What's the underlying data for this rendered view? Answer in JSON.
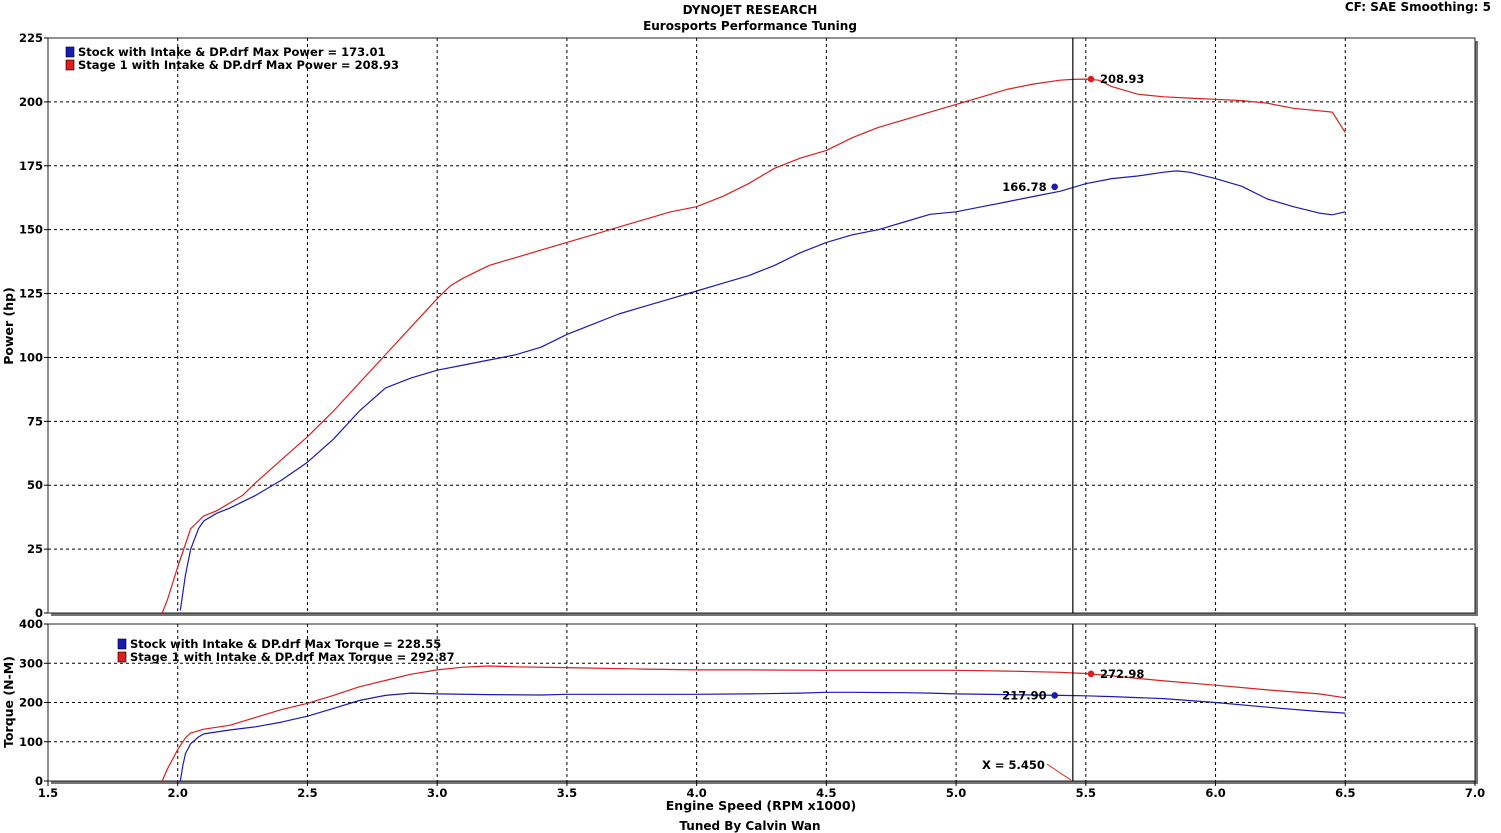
{
  "header": {
    "title": "DYNOJET RESEARCH",
    "subtitle": "Eurosports Performance Tuning",
    "settings": "CF: SAE  Smoothing: 5",
    "footer": "Tuned By Calvin Wan"
  },
  "colors": {
    "stock": "#1a1ab4",
    "stage1": "#dc1e1e",
    "grid": "#000000"
  },
  "chart_data": [
    {
      "type": "line",
      "panel": "power",
      "ylabel": "Power (hp)",
      "xlabel": "",
      "xlim": [
        1.5,
        7.0
      ],
      "ylim": [
        0,
        225
      ],
      "x_ticks": [
        1.5,
        2.0,
        2.5,
        3.0,
        3.5,
        4.0,
        4.5,
        5.0,
        5.5,
        6.0,
        6.5,
        7.0
      ],
      "y_ticks": [
        0,
        25,
        50,
        75,
        100,
        125,
        150,
        175,
        200,
        225
      ],
      "grid": true,
      "legend": [
        "Stock with Intake & DP.drf Max Power = 173.01",
        "Stage 1 with Intake & DP.drf Max Power = 208.93"
      ],
      "series": [
        {
          "id": "stock",
          "color": "#1a1ab4",
          "x": [
            2.01,
            2.02,
            2.03,
            2.05,
            2.08,
            2.1,
            2.15,
            2.2,
            2.3,
            2.4,
            2.5,
            2.6,
            2.7,
            2.8,
            2.9,
            3.0,
            3.1,
            3.2,
            3.3,
            3.4,
            3.5,
            3.6,
            3.7,
            3.8,
            3.9,
            4.0,
            4.1,
            4.2,
            4.3,
            4.4,
            4.5,
            4.6,
            4.7,
            4.8,
            4.9,
            5.0,
            5.1,
            5.2,
            5.3,
            5.4,
            5.5,
            5.6,
            5.7,
            5.8,
            5.85,
            5.9,
            6.0,
            6.1,
            6.2,
            6.3,
            6.4,
            6.45,
            6.5
          ],
          "y": [
            1,
            8,
            15,
            25,
            33,
            36,
            39,
            41,
            46,
            52,
            59,
            68,
            79,
            88,
            92,
            95,
            97,
            99,
            101,
            104,
            109,
            113,
            117,
            120,
            123,
            126,
            129,
            132,
            136,
            141,
            145,
            148,
            150,
            153,
            156,
            157,
            159,
            161,
            163,
            165,
            168,
            170,
            171,
            172.5,
            173.01,
            172.5,
            170,
            167,
            162,
            159,
            156.5,
            155.8,
            157
          ]
        },
        {
          "id": "stage1",
          "color": "#dc1e1e",
          "x": [
            1.94,
            1.96,
            2.0,
            2.03,
            2.05,
            2.08,
            2.1,
            2.15,
            2.2,
            2.25,
            2.3,
            2.4,
            2.5,
            2.6,
            2.7,
            2.8,
            2.9,
            3.0,
            3.05,
            3.1,
            3.2,
            3.3,
            3.4,
            3.5,
            3.6,
            3.7,
            3.8,
            3.9,
            4.0,
            4.1,
            4.2,
            4.3,
            4.4,
            4.5,
            4.6,
            4.7,
            4.8,
            4.9,
            5.0,
            5.1,
            5.2,
            5.3,
            5.4,
            5.45,
            5.5,
            5.55,
            5.6,
            5.7,
            5.8,
            5.9,
            6.0,
            6.1,
            6.2,
            6.3,
            6.4,
            6.45,
            6.5
          ],
          "y": [
            0,
            5,
            18,
            27,
            33,
            36,
            38,
            40,
            43,
            46,
            51,
            60,
            69,
            79,
            90,
            101,
            112,
            123,
            128,
            131,
            136,
            139,
            142,
            145,
            148,
            151,
            154,
            157,
            159,
            163,
            168,
            174,
            178,
            181,
            186,
            190,
            193,
            196,
            199,
            202,
            205,
            207,
            208.5,
            208.8,
            208.93,
            208.5,
            206,
            203,
            202,
            201.5,
            201,
            200.5,
            199.5,
            197.5,
            196.5,
            196,
            188
          ]
        }
      ],
      "annotations": [
        {
          "series": "stock",
          "x": 5.38,
          "y": 166.78,
          "label": "166.78"
        },
        {
          "series": "stage1",
          "x": 5.52,
          "y": 208.93,
          "label": "208.93"
        }
      ]
    },
    {
      "type": "line",
      "panel": "torque",
      "ylabel": "Torque (N-M)",
      "xlabel": "Engine Speed (RPM x1000)",
      "xlim": [
        1.5,
        7.0
      ],
      "ylim": [
        0,
        400
      ],
      "x_ticks": [
        1.5,
        2.0,
        2.5,
        3.0,
        3.5,
        4.0,
        4.5,
        5.0,
        5.5,
        6.0,
        6.5,
        7.0
      ],
      "y_ticks": [
        0,
        100,
        200,
        300,
        400
      ],
      "grid": true,
      "legend": [
        "Stock with Intake & DP.drf Max Torque = 228.55",
        "Stage 1 with Intake & DP.drf Max Torque = 292.87"
      ],
      "series": [
        {
          "id": "stock",
          "color": "#1a1ab4",
          "x": [
            2.01,
            2.02,
            2.03,
            2.05,
            2.08,
            2.1,
            2.2,
            2.3,
            2.4,
            2.5,
            2.6,
            2.7,
            2.8,
            2.9,
            3.0,
            3.2,
            3.4,
            3.5,
            3.8,
            4.0,
            4.2,
            4.4,
            4.5,
            4.6,
            4.8,
            4.9,
            5.0,
            5.2,
            5.4,
            5.5,
            5.6,
            5.8,
            6.0,
            6.2,
            6.4,
            6.5
          ],
          "y": [
            0,
            40,
            70,
            95,
            112,
            120,
            130,
            138,
            150,
            165,
            185,
            205,
            218,
            224,
            222,
            220,
            219,
            221,
            221,
            221,
            222,
            224,
            226,
            226,
            225,
            224,
            222,
            220,
            218,
            217,
            215,
            210,
            200,
            188,
            177,
            173
          ]
        },
        {
          "id": "stage1",
          "color": "#dc1e1e",
          "x": [
            1.94,
            1.96,
            2.0,
            2.03,
            2.05,
            2.1,
            2.2,
            2.3,
            2.4,
            2.5,
            2.6,
            2.7,
            2.8,
            2.9,
            3.0,
            3.1,
            3.2,
            3.3,
            3.5,
            3.8,
            4.0,
            4.2,
            4.5,
            4.8,
            5.0,
            5.2,
            5.4,
            5.5,
            5.6,
            5.8,
            6.0,
            6.2,
            6.4,
            6.5
          ],
          "y": [
            0,
            30,
            80,
            110,
            122,
            132,
            142,
            162,
            182,
            198,
            218,
            240,
            256,
            272,
            283,
            290,
            292.87,
            291,
            289,
            285,
            283,
            283,
            282,
            282,
            282,
            280,
            277,
            274,
            268,
            255,
            244,
            232,
            222,
            212
          ]
        }
      ],
      "annotations": [
        {
          "series": "stock",
          "x": 5.38,
          "y": 217.9,
          "label": "217.90"
        },
        {
          "series": "stage1",
          "x": 5.52,
          "y": 272.98,
          "label": "272.98"
        }
      ],
      "cursor": {
        "x": 5.45,
        "label": "X = 5.450"
      }
    }
  ]
}
